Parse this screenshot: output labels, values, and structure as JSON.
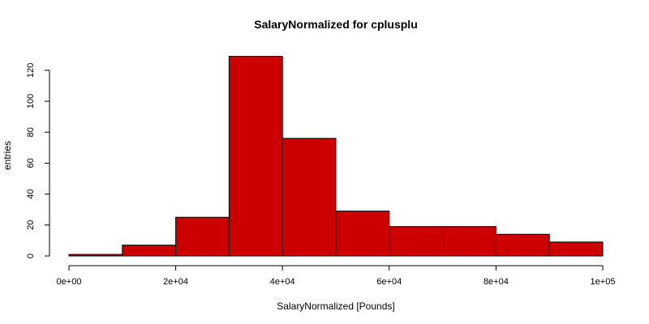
{
  "chart_data": {
    "type": "bar",
    "subtype": "histogram",
    "title": "SalaryNormalized for cplusplu",
    "xlabel": "SalaryNormalized [Pounds]",
    "ylabel": "entries",
    "bins": [
      {
        "start": 0,
        "end": 10000,
        "count": 1
      },
      {
        "start": 10000,
        "end": 20000,
        "count": 7
      },
      {
        "start": 20000,
        "end": 30000,
        "count": 25
      },
      {
        "start": 30000,
        "end": 40000,
        "count": 129
      },
      {
        "start": 40000,
        "end": 50000,
        "count": 76
      },
      {
        "start": 50000,
        "end": 60000,
        "count": 29
      },
      {
        "start": 60000,
        "end": 70000,
        "count": 19
      },
      {
        "start": 70000,
        "end": 80000,
        "count": 19
      },
      {
        "start": 80000,
        "end": 90000,
        "count": 14
      },
      {
        "start": 90000,
        "end": 100000,
        "count": 9
      }
    ],
    "xlim": [
      0,
      100000
    ],
    "ylim": [
      0,
      134
    ],
    "xticks": [
      {
        "value": 0,
        "label": "0e+00"
      },
      {
        "value": 20000,
        "label": "2e+04"
      },
      {
        "value": 40000,
        "label": "4e+04"
      },
      {
        "value": 60000,
        "label": "6e+04"
      },
      {
        "value": 80000,
        "label": "8e+04"
      },
      {
        "value": 100000,
        "label": "1e+05"
      }
    ],
    "yticks": [
      {
        "value": 0,
        "label": "0"
      },
      {
        "value": 20,
        "label": "20"
      },
      {
        "value": 40,
        "label": "40"
      },
      {
        "value": 60,
        "label": "60"
      },
      {
        "value": 80,
        "label": "80"
      },
      {
        "value": 100,
        "label": "100"
      },
      {
        "value": 120,
        "label": "120"
      }
    ],
    "bar_color": "#CD0000",
    "grid": false,
    "legend": "none"
  }
}
